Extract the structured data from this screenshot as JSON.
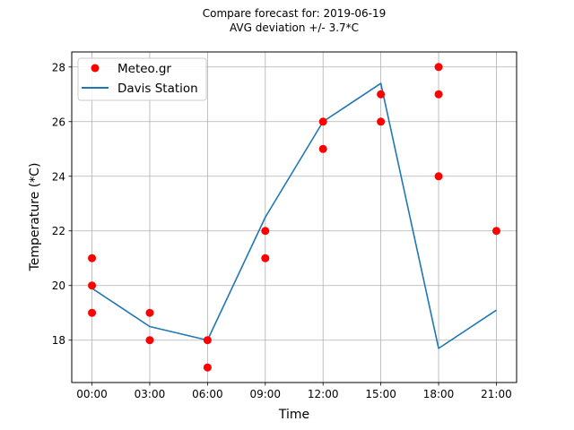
{
  "chart_data": {
    "type": "scatter",
    "title": "Compare forecast for: 2019-06-19",
    "subtitle": "AVG deviation +/- 3.7*C",
    "xlabel": "Time",
    "ylabel": "Temperature (*C)",
    "x_ticks": [
      "00:00",
      "03:00",
      "06:00",
      "09:00",
      "12:00",
      "15:00",
      "18:00",
      "21:00"
    ],
    "x_tick_values": [
      0,
      3,
      6,
      9,
      12,
      15,
      18,
      21
    ],
    "y_ticks": [
      "18",
      "20",
      "22",
      "24",
      "26",
      "28"
    ],
    "y_tick_values": [
      18,
      20,
      22,
      24,
      26,
      28
    ],
    "xlim": [
      -1.05,
      22.05
    ],
    "ylim": [
      16.45,
      28.55
    ],
    "grid": true,
    "legend_position": "top-left",
    "series": [
      {
        "name": "Meteo.gr",
        "kind": "scatter",
        "color": "#ff0000",
        "points": [
          [
            0,
            21
          ],
          [
            0,
            20
          ],
          [
            0,
            19
          ],
          [
            3,
            19
          ],
          [
            3,
            18
          ],
          [
            6,
            18
          ],
          [
            6,
            17
          ],
          [
            9,
            22
          ],
          [
            9,
            21
          ],
          [
            12,
            26
          ],
          [
            12,
            25
          ],
          [
            15,
            27
          ],
          [
            15,
            26
          ],
          [
            18,
            28
          ],
          [
            18,
            27
          ],
          [
            18,
            24
          ],
          [
            21,
            22
          ]
        ]
      },
      {
        "name": "Davis Station",
        "kind": "line",
        "color": "#1f77b4",
        "points": [
          [
            0,
            19.9
          ],
          [
            3,
            18.5
          ],
          [
            6,
            18.0
          ],
          [
            9,
            22.5
          ],
          [
            12,
            26.0
          ],
          [
            15,
            27.4
          ],
          [
            18,
            17.7
          ],
          [
            21,
            19.1
          ]
        ]
      }
    ]
  }
}
